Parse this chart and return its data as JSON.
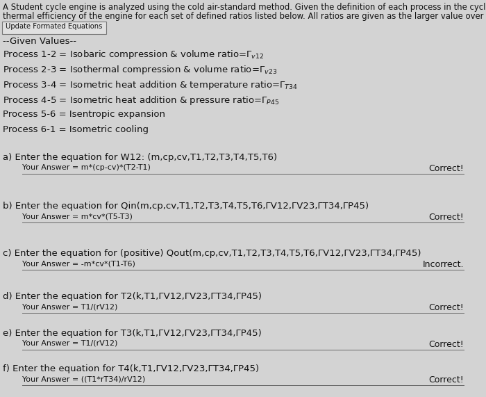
{
  "bg_color": "#d3d3d3",
  "header_line1": "A Student cycle engine is analyzed using the cold air-standard method. Given the definition of each process in the cycle, determine the",
  "header_line2": "thermal efficiency of the engine for each set of defined ratios listed below. All ratios are given as the larger value over the smaller one.",
  "button_text": "Update Formated Equations",
  "given_label": "--Given Values--",
  "processes": [
    "Process 1-2 = Isobaric compression & volume ratio=Γ$_{v12}$",
    "Process 2-3 = Isothermal compression & volume ratio=Γ$_{v23}$",
    "Process 3-4 = Isometric heat addition & temperature ratio=Γ$_{T34}$",
    "Process 4-5 = Isometric heat addition & pressure ratio=Γ$_{P45}$",
    "Process 5-6 = Isentropic expansion",
    "Process 6-1 = Isometric cooling"
  ],
  "questions": [
    {
      "label": "a) Enter the equation for W12: (m,cp,cv,T1,T2,T3,T4,T5,T6)",
      "answer": "Your Answer = m*(cp-cv)*(T2-T1)",
      "result": "Correct!"
    },
    {
      "label": "b) Enter the equation for Qin(m,cp,cv,T1,T2,T3,T4,T5,T6,ΓV12,ΓV23,ΓT34,ΓP45)",
      "answer": "Your Answer = m*cv*(T5-T3)",
      "result": "Correct!"
    },
    {
      "label": "c) Enter the equation for (positive) Qout(m,cp,cv,T1,T2,T3,T4,T5,T6,ΓV12,ΓV23,ΓT34,ΓP45)",
      "answer": "Your Answer = -m*cv*(T1-T6)",
      "result": "Incorrect."
    },
    {
      "label": "d) Enter the equation for T2(k,T1,ΓV12,ΓV23,ΓT34,ΓP45)",
      "answer": "Your Answer = T1/(rV12)",
      "result": "Correct!"
    },
    {
      "label": "e) Enter the equation for T3(k,T1,ΓV12,ΓV23,ΓT34,ΓP45)",
      "answer": "Your Answer = T1/(rV12)",
      "result": "Correct!"
    },
    {
      "label": "f) Enter the equation for T4(k,T1,ΓV12,ΓV23,ΓT34,ΓP45)",
      "answer": "Your Answer = ((T1*rT34)/rV12)",
      "result": "Correct!"
    }
  ],
  "header_fontsize": 8.4,
  "body_fontsize": 9.5,
  "answer_fontsize": 8.0,
  "result_fontsize": 9.0,
  "text_color": "#111111",
  "line_color": "#666666",
  "btn_edge_color": "#777777",
  "btn_face_color": "#e0e0e0"
}
